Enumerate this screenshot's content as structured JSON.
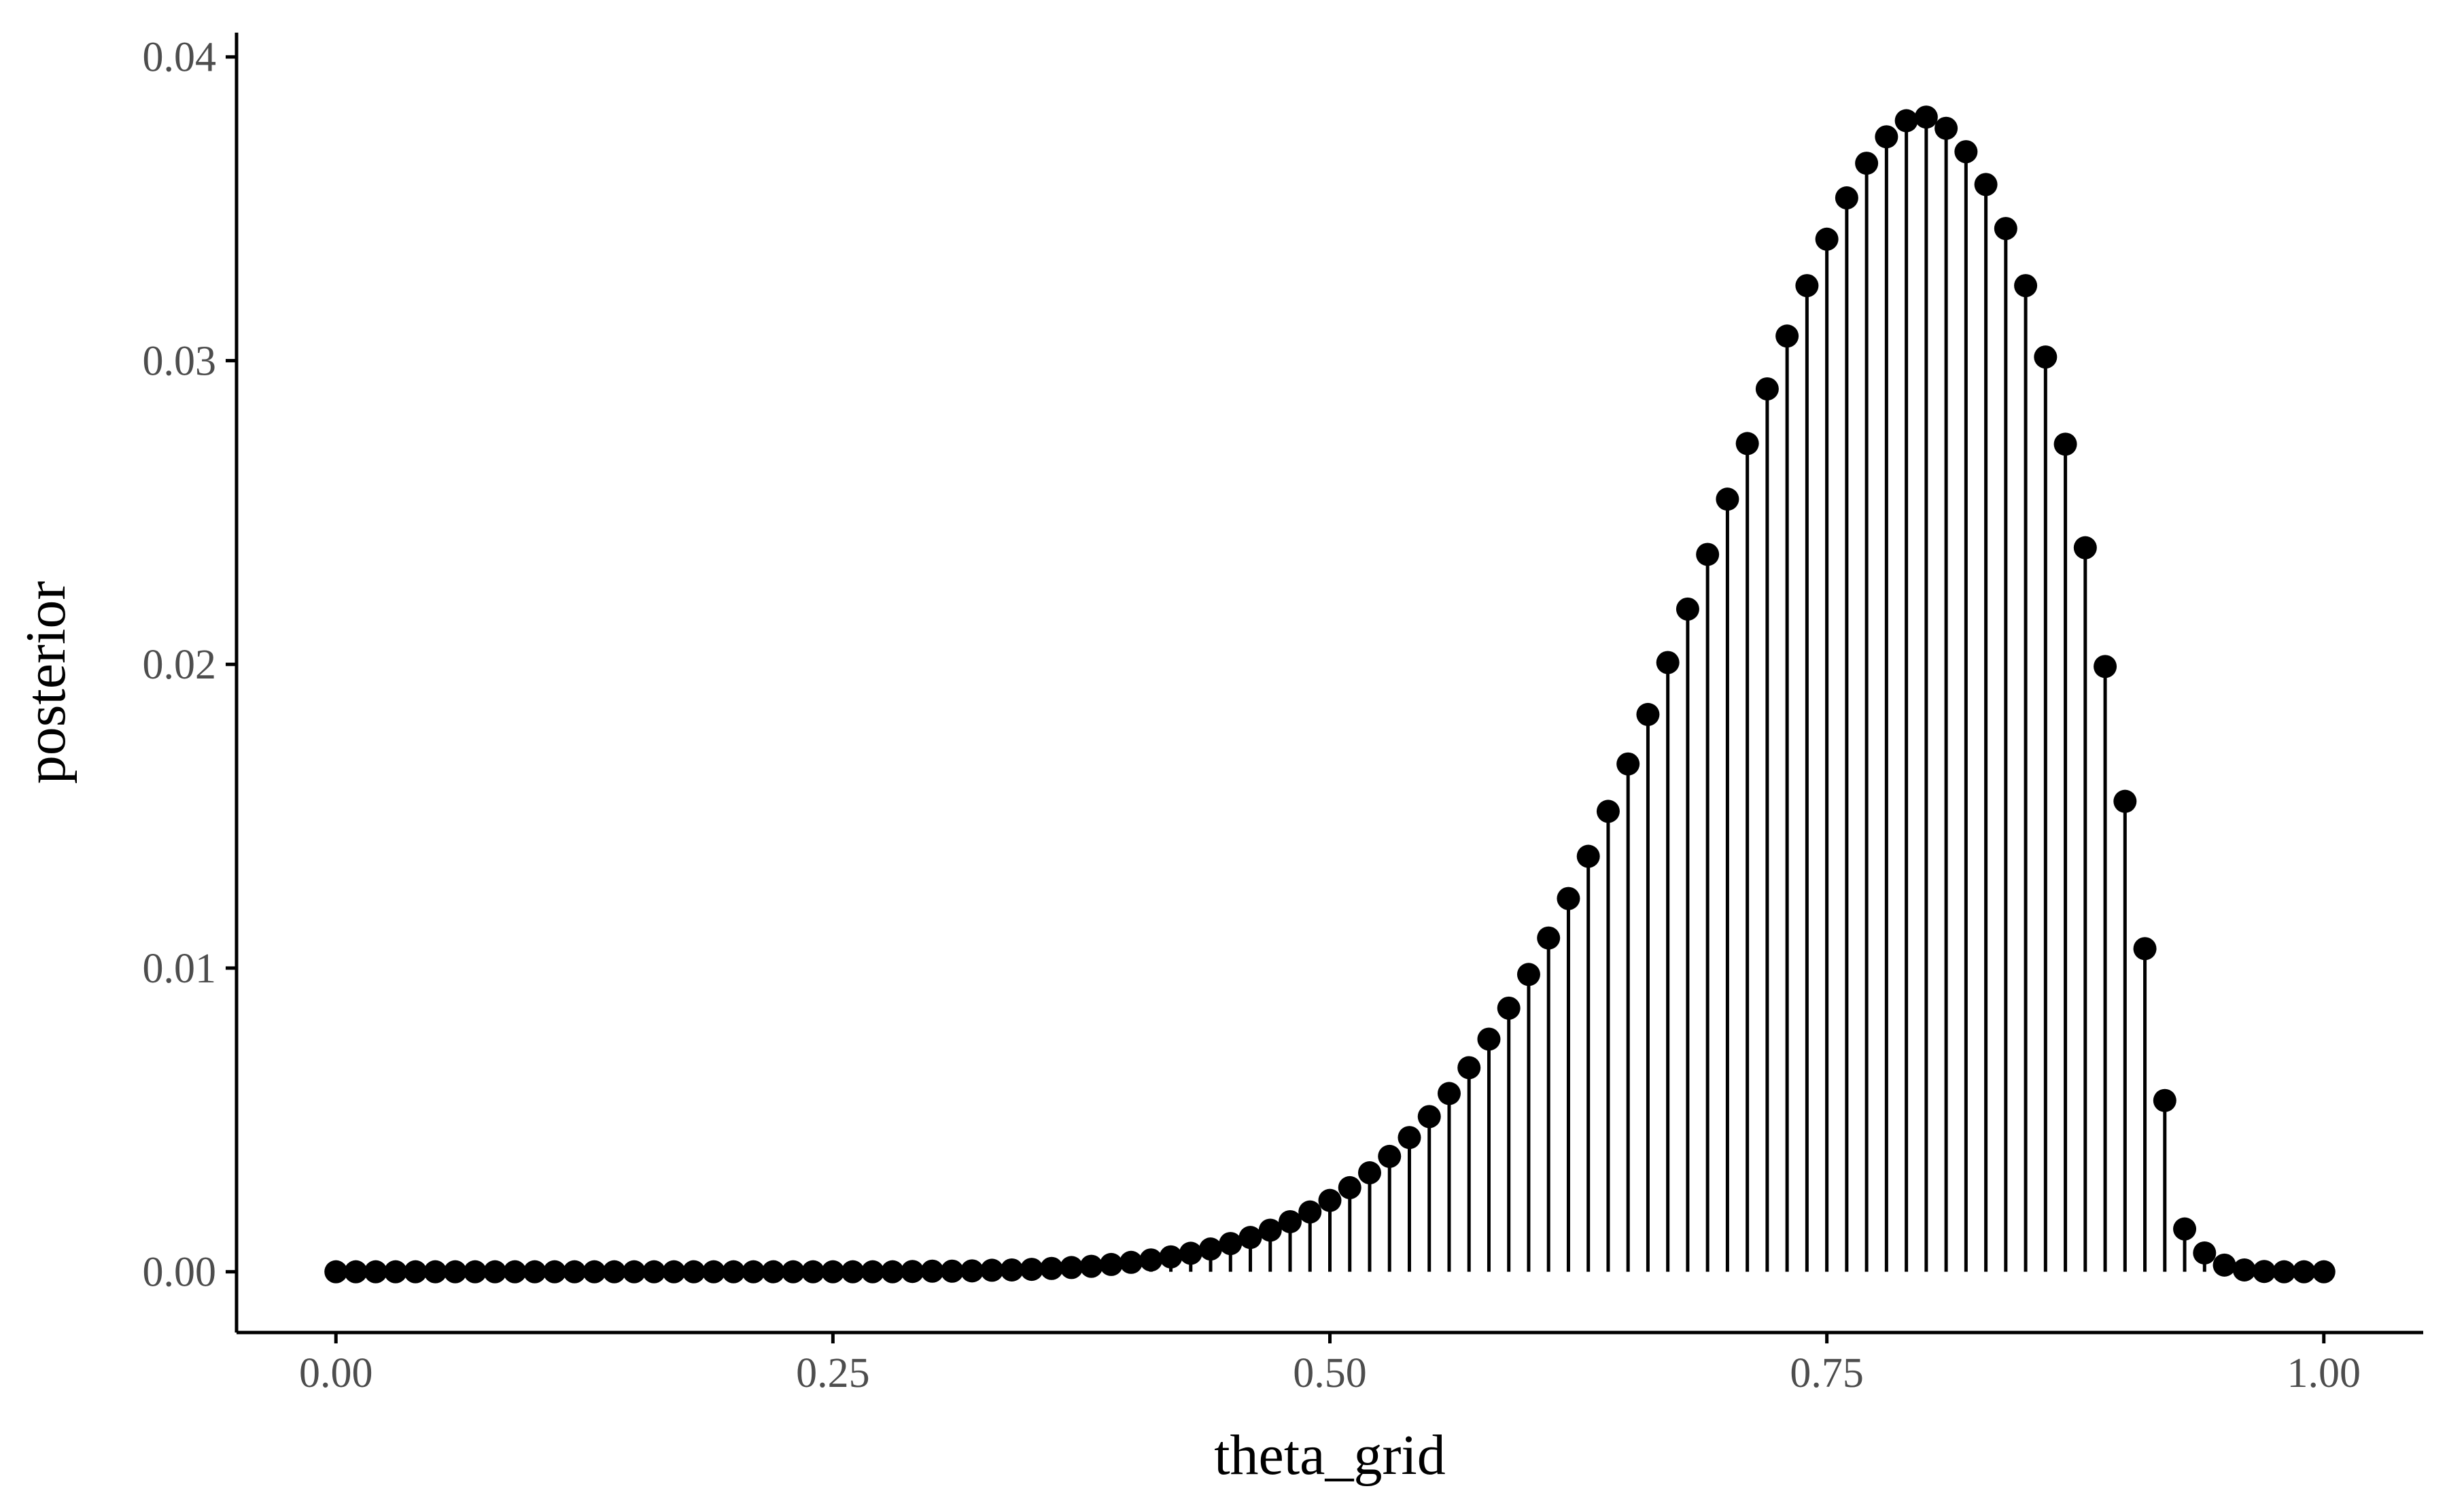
{
  "chart_data": {
    "type": "scatter",
    "style": "lollipop",
    "title": "",
    "xlabel": "theta_grid",
    "ylabel": "posterior",
    "xlim": [
      -0.05,
      1.05
    ],
    "ylim": [
      -0.002,
      0.0408
    ],
    "x_ticks": [
      0.0,
      0.25,
      0.5,
      0.75,
      1.0
    ],
    "x_tick_labels": [
      "0.00",
      "0.25",
      "0.50",
      "0.75",
      "1.00"
    ],
    "y_ticks": [
      0.0,
      0.01,
      0.02,
      0.03,
      0.04
    ],
    "y_tick_labels": [
      "0.00",
      "0.01",
      "0.02",
      "0.03",
      "0.04"
    ],
    "grid": false,
    "legend": "none",
    "colors": {
      "points": "#000000",
      "segments": "#000000",
      "axis": "#000000",
      "tick_labels": "#4d4d4d"
    },
    "series": [
      {
        "x": [
          0,
          0.01,
          0.02,
          0.03,
          0.04,
          0.05,
          0.06,
          0.07,
          0.08,
          0.09,
          0.1,
          0.11,
          0.12,
          0.13,
          0.14,
          0.15,
          0.16,
          0.17,
          0.18,
          0.19,
          0.2,
          0.21,
          0.22,
          0.23,
          0.24,
          0.25,
          0.26,
          0.27,
          0.28,
          0.29,
          0.3,
          0.31,
          0.32,
          0.33,
          0.34,
          0.35,
          0.36,
          0.37,
          0.38,
          0.39,
          0.4,
          0.41,
          0.42,
          0.43,
          0.44,
          0.45,
          0.46,
          0.47,
          0.48,
          0.49,
          0.5,
          0.51,
          0.52,
          0.53,
          0.54,
          0.55,
          0.56,
          0.57,
          0.58,
          0.59,
          0.6,
          0.61,
          0.62,
          0.63,
          0.64,
          0.65,
          0.66,
          0.67,
          0.68,
          0.69,
          0.7,
          0.71,
          0.72,
          0.73,
          0.74,
          0.75,
          0.76,
          0.77,
          0.78,
          0.79,
          0.8,
          0.81,
          0.82,
          0.83,
          0.84,
          0.85,
          0.86,
          0.87,
          0.88,
          0.89,
          0.9,
          0.91,
          0.92,
          0.93,
          0.94,
          0.95,
          0.96,
          0.97,
          0.98,
          0.99,
          1
        ],
        "y": [
          0,
          0,
          0,
          0,
          0,
          0,
          0,
          0,
          0,
          0,
          0,
          0,
          0,
          0,
          0,
          0,
          0,
          0,
          0,
          0,
          0,
          0,
          0,
          0,
          0,
          0,
          0,
          0,
          0,
          1e-05,
          2e-05,
          2e-05,
          3e-05,
          5e-05,
          6e-05,
          8e-05,
          0.00011,
          0.00014,
          0.00018,
          0.00024,
          0.00031,
          0.00039,
          0.00049,
          0.00061,
          0.00075,
          0.00093,
          0.00113,
          0.00137,
          0.00165,
          0.00197,
          0.00235,
          0.00277,
          0.00326,
          0.0038,
          0.00442,
          0.00511,
          0.00587,
          0.00672,
          0.00766,
          0.00868,
          0.00979,
          0.01099,
          0.01229,
          0.01368,
          0.01516,
          0.01672,
          0.01835,
          0.02006,
          0.02182,
          0.02362,
          0.02544,
          0.02727,
          0.02907,
          0.03081,
          0.03247,
          0.034,
          0.03536,
          0.0365,
          0.03737,
          0.0379,
          0.03802,
          0.03765,
          0.03688,
          0.0358,
          0.03435,
          0.03247,
          0.03012,
          0.02725,
          0.02384,
          0.01993,
          0.01549,
          0.01064,
          0.00564,
          0.00141,
          0.00062,
          0.00022,
          6e-05,
          1e-05,
          0,
          0,
          0
        ]
      }
    ]
  }
}
